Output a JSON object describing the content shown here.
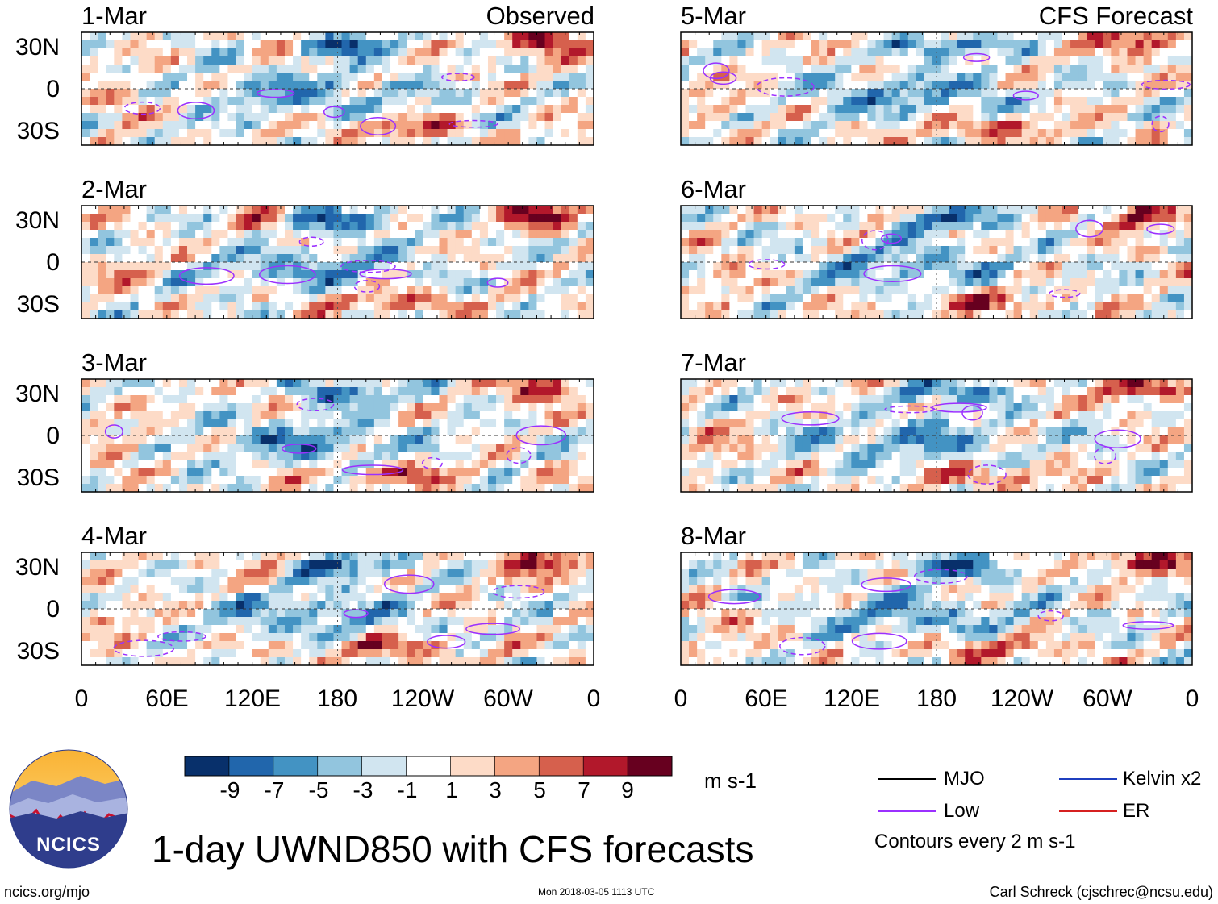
{
  "chart_data": {
    "type": "heatmap",
    "title": "1-day UWND850 with CFS forecasts",
    "units": "m s-1",
    "column_titles": [
      "Observed",
      "CFS Forecast"
    ],
    "panels_observed": [
      "1-Mar",
      "2-Mar",
      "3-Mar",
      "4-Mar"
    ],
    "panels_forecast": [
      "5-Mar",
      "6-Mar",
      "7-Mar",
      "8-Mar"
    ],
    "lat_ticks": [
      "30N",
      "0",
      "30S"
    ],
    "lon_ticks": [
      "0",
      "60E",
      "120E",
      "180",
      "120W",
      "60W",
      "0"
    ],
    "xlim_deg": [
      0,
      360
    ],
    "ylim_deg": [
      -40,
      40
    ],
    "colorbar": {
      "levels": [
        "-9",
        "-7",
        "-5",
        "-3",
        "-1",
        "1",
        "3",
        "5",
        "7",
        "9"
      ],
      "colors": [
        "#08306b",
        "#2166ac",
        "#4393c3",
        "#92c5de",
        "#d1e5f0",
        "#ffffff",
        "#fddbc7",
        "#f4a582",
        "#d6604d",
        "#b2182b",
        "#67001f"
      ]
    },
    "contour_legend": [
      {
        "label": "MJO",
        "color": "#000000"
      },
      {
        "label": "Kelvin x2",
        "color": "#1f3fbf"
      },
      {
        "label": "Low",
        "color": "#9b30ff"
      },
      {
        "label": "ER",
        "color": "#d62020"
      }
    ],
    "contour_note": "Contours every 2 m s-1"
  },
  "footer": {
    "url": "ncics.org/mjo",
    "timestamp": "Mon 2018-03-05 1113 UTC",
    "credit": "Carl Schreck (cjschrec@ncsu.edu)"
  },
  "logo": {
    "text": "NCICS"
  }
}
